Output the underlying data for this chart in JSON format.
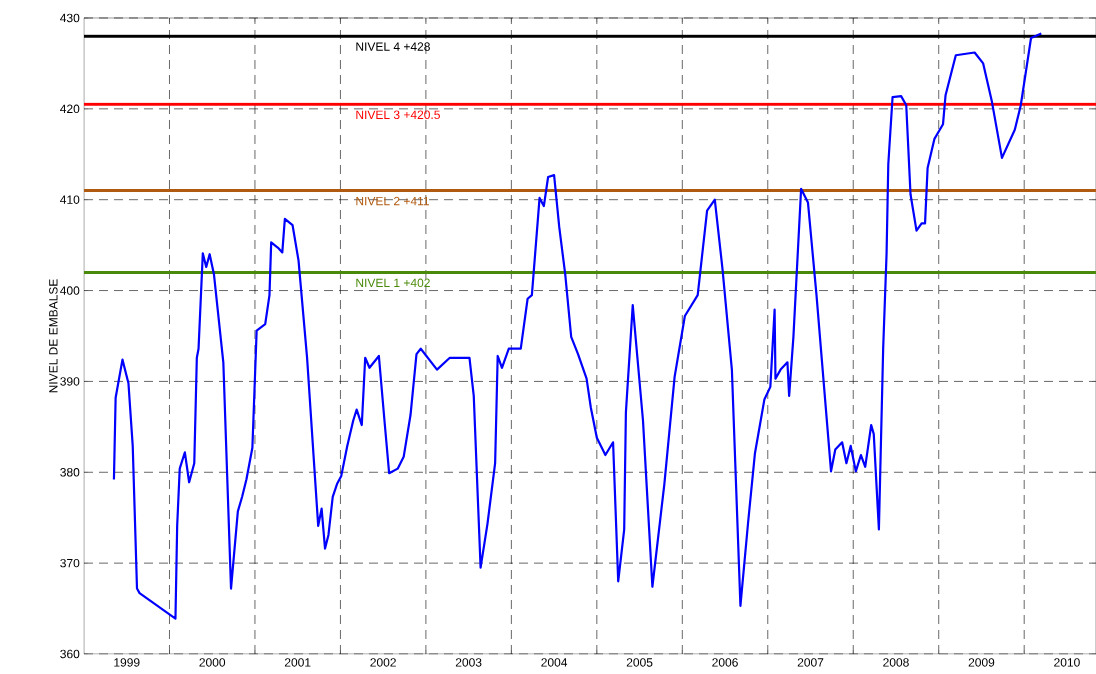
{
  "chart_data": {
    "type": "line",
    "ylabel": "NIVEL DE EMBALSE",
    "color": "#0000ff",
    "x": [
      1999.35,
      1999.37,
      1999.45,
      1999.52,
      1999.57,
      1999.62,
      1999.65,
      2000.07,
      2000.09,
      2000.12,
      2000.18,
      2000.23,
      2000.29,
      2000.32,
      2000.34,
      2000.39,
      2000.43,
      2000.47,
      2000.52,
      2000.63,
      2000.72,
      2000.8,
      2000.85,
      2000.9,
      2000.97,
      2001.02,
      2001.12,
      2001.17,
      2001.19,
      2001.27,
      2001.32,
      2001.35,
      2001.44,
      2001.51,
      2001.61,
      2001.74,
      2001.78,
      2001.82,
      2001.86,
      2001.91,
      2001.96,
      2002.01,
      2002.08,
      2002.15,
      2002.19,
      2002.25,
      2002.29,
      2002.34,
      2002.45,
      2002.52,
      2002.57,
      2002.67,
      2002.74,
      2002.82,
      2002.89,
      2002.94,
      2003.13,
      2003.28,
      2003.51,
      2003.56,
      2003.64,
      2003.72,
      2003.81,
      2003.84,
      2003.89,
      2003.97,
      2004.11,
      2004.19,
      2004.24,
      2004.33,
      2004.38,
      2004.43,
      2004.5,
      2004.56,
      2004.63,
      2004.7,
      2004.78,
      2004.88,
      2004.93,
      2005.0,
      2005.1,
      2005.19,
      2005.25,
      2005.32,
      2005.34,
      2005.42,
      2005.54,
      2005.65,
      2005.79,
      2005.91,
      2006.03,
      2006.18,
      2006.29,
      2006.38,
      2006.47,
      2006.58,
      2006.68,
      2006.77,
      2006.85,
      2006.96,
      2007.03,
      2007.08,
      2007.09,
      2007.15,
      2007.23,
      2007.25,
      2007.3,
      2007.39,
      2007.47,
      2007.57,
      2007.74,
      2007.79,
      2007.87,
      2007.92,
      2007.97,
      2008.03,
      2008.09,
      2008.14,
      2008.21,
      2008.24,
      2008.3,
      2008.35,
      2008.39,
      2008.41,
      2008.46,
      2008.56,
      2008.62,
      2008.67,
      2008.74,
      2008.8,
      2008.84,
      2008.87,
      2008.95,
      2009.05,
      2009.08,
      2009.2,
      2009.42,
      2009.52,
      2009.62,
      2009.74,
      2009.89,
      2009.96,
      2010.08,
      2010.2
    ],
    "values": [
      379.2,
      388.2,
      392.4,
      389.8,
      382.9,
      367.2,
      366.7,
      363.9,
      374.1,
      380.4,
      382.2,
      378.9,
      381,
      392.6,
      393.6,
      404.1,
      402.6,
      404,
      401.8,
      392.1,
      367.2,
      375.7,
      377.3,
      379.2,
      382.7,
      395.6,
      396.3,
      399.5,
      405.3,
      404.7,
      404.2,
      407.9,
      407.2,
      403.3,
      392.6,
      374.1,
      376,
      371.6,
      373.1,
      377.3,
      378.7,
      379.6,
      382.9,
      385.7,
      386.9,
      385.2,
      392.6,
      391.5,
      392.8,
      385.2,
      379.9,
      380.4,
      381.7,
      386.3,
      393,
      393.6,
      391.3,
      392.6,
      392.6,
      388.4,
      369.5,
      374.3,
      381,
      392.8,
      391.5,
      393.6,
      393.6,
      399.1,
      399.5,
      410.2,
      409.3,
      412.5,
      412.7,
      407,
      401.8,
      394.9,
      393,
      390.3,
      387.1,
      383.8,
      381.9,
      383.3,
      368,
      373.7,
      386.6,
      398.4,
      385.7,
      367.4,
      378.7,
      390.5,
      397.2,
      399.5,
      408.8,
      410,
      402.4,
      391.3,
      365.3,
      374.5,
      382.1,
      388,
      389.4,
      397.9,
      390.3,
      391.3,
      392.1,
      388.4,
      394.9,
      411.2,
      409.7,
      399.5,
      380.1,
      382.5,
      383.3,
      381,
      382.9,
      380.1,
      381.9,
      380.6,
      385.2,
      384.2,
      373.7,
      393.6,
      404.1,
      413.9,
      421.3,
      421.4,
      420.4,
      410.6,
      406.6,
      407.4,
      407.4,
      413.5,
      416.7,
      418.3,
      421.5,
      425.9,
      426.2,
      425,
      420.9,
      414.6,
      417.7,
      420.4,
      427.8,
      428.3
    ],
    "xlim": [
      1999,
      2010.84
    ],
    "ylim": [
      360,
      430
    ],
    "xticks": [
      {
        "value": 2000,
        "label": null
      },
      {
        "value": 2001,
        "label": null
      },
      {
        "value": 2002,
        "label": null
      },
      {
        "value": 2003,
        "label": null
      },
      {
        "value": 2004,
        "label": null
      },
      {
        "value": 2005,
        "label": null
      },
      {
        "value": 2006,
        "label": null
      },
      {
        "value": 2007,
        "label": null
      },
      {
        "value": 2008,
        "label": null
      },
      {
        "value": 2009,
        "label": null
      },
      {
        "value": 2010,
        "label": null
      },
      {
        "value": 1999.5,
        "label": "1999"
      },
      {
        "value": 2000.5,
        "label": "2000"
      },
      {
        "value": 2001.5,
        "label": "2001"
      },
      {
        "value": 2002.5,
        "label": "2002"
      },
      {
        "value": 2003.5,
        "label": "2003"
      },
      {
        "value": 2004.5,
        "label": "2004"
      },
      {
        "value": 2005.5,
        "label": "2005"
      },
      {
        "value": 2006.5,
        "label": "2006"
      },
      {
        "value": 2007.5,
        "label": "2007"
      },
      {
        "value": 2008.5,
        "label": "2008"
      },
      {
        "value": 2009.5,
        "label": "2009"
      },
      {
        "value": 2010.5,
        "label": "2010"
      }
    ],
    "yticks": [
      360,
      370,
      380,
      390,
      400,
      410,
      420,
      430
    ],
    "grid": true,
    "ref_lines": [
      {
        "axis": "y",
        "value": 428,
        "label": "NIVEL 4 +428",
        "color": "#000000"
      },
      {
        "axis": "y",
        "value": 420.5,
        "label": "NIVEL 3 +420.5",
        "color": "#ff0000"
      },
      {
        "axis": "y",
        "value": 411,
        "label": "NIVEL 2 +411",
        "color": "#b05a10"
      },
      {
        "axis": "y",
        "value": 402,
        "label": "NIVEL 1 +402",
        "color": "#4a8a0a"
      }
    ]
  }
}
